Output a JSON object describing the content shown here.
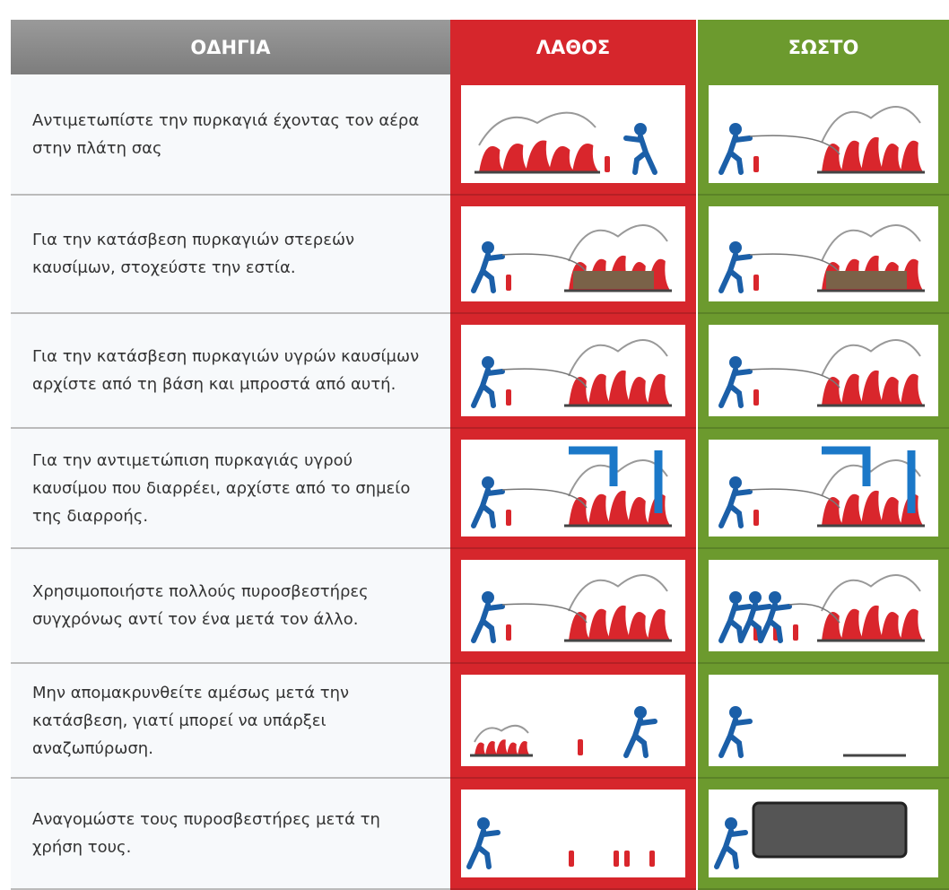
{
  "header": {
    "columns": [
      "ΟΔΗΓΙΑ",
      "ΛΑΘΟΣ",
      "ΣΩΣΤΟ"
    ]
  },
  "rows": [
    {
      "instruction": "Αντιμετωπίστε την πυρκαγιά έχοντας τον αέρα στην πλάτη σας"
    },
    {
      "instruction": "Για την κατάσβεση πυρκαγιών στερεών καυσίμων, στοχεύστε την εστία."
    },
    {
      "instruction": "Για την κατάσβεση πυρκαγιών υγρών καυσίμων αρχίστε από τη βάση και μπροστά από αυτή."
    },
    {
      "instruction": "Για την αντιμετώπιση πυρκαγιάς υγρού καυσίμου που διαρρέει, αρχίστε από το σημείο της διαρροής."
    },
    {
      "instruction": "Χρησιμοποιήστε πολλούς πυροσβεστήρες συγχρόνως αντί τον ένα μετά τον άλλο."
    },
    {
      "instruction": "Μην απομακρυνθείτε αμέσως μετά την κατάσβεση, γιατί μπορεί να υπάρξει αναζωπύρωση."
    },
    {
      "instruction": "Αναγομώστε τους πυροσβεστήρες μετά τη χρήση τους."
    }
  ]
}
